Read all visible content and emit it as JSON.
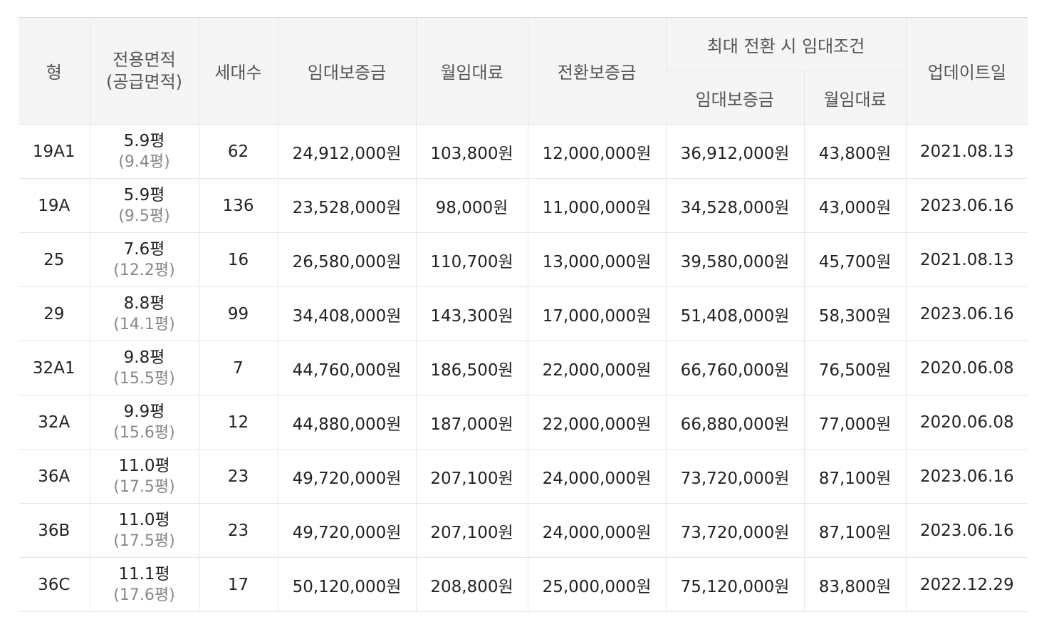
{
  "headers": {
    "type": "형",
    "area_line1": "전용면적",
    "area_line2": "(공급면적)",
    "households": "세대수",
    "deposit": "임대보증금",
    "monthly_rent": "월임대료",
    "conversion_deposit": "전환보증금",
    "max_conversion_group": "최대 전환 시 임대조건",
    "max_deposit": "임대보증금",
    "max_monthly_rent": "월임대료",
    "updated": "업데이트일"
  },
  "rows": [
    {
      "type": "19A1",
      "area": "5.9평",
      "supply_area": "(9.4평)",
      "households": "62",
      "deposit": "24,912,000원",
      "rent": "103,800원",
      "conversion": "12,000,000원",
      "max_deposit": "36,912,000원",
      "max_rent": "43,800원",
      "updated": "2021.08.13"
    },
    {
      "type": "19A",
      "area": "5.9평",
      "supply_area": "(9.5평)",
      "households": "136",
      "deposit": "23,528,000원",
      "rent": "98,000원",
      "conversion": "11,000,000원",
      "max_deposit": "34,528,000원",
      "max_rent": "43,000원",
      "updated": "2023.06.16"
    },
    {
      "type": "25",
      "area": "7.6평",
      "supply_area": "(12.2평)",
      "households": "16",
      "deposit": "26,580,000원",
      "rent": "110,700원",
      "conversion": "13,000,000원",
      "max_deposit": "39,580,000원",
      "max_rent": "45,700원",
      "updated": "2021.08.13"
    },
    {
      "type": "29",
      "area": "8.8평",
      "supply_area": "(14.1평)",
      "households": "99",
      "deposit": "34,408,000원",
      "rent": "143,300원",
      "conversion": "17,000,000원",
      "max_deposit": "51,408,000원",
      "max_rent": "58,300원",
      "updated": "2023.06.16"
    },
    {
      "type": "32A1",
      "area": "9.8평",
      "supply_area": "(15.5평)",
      "households": "7",
      "deposit": "44,760,000원",
      "rent": "186,500원",
      "conversion": "22,000,000원",
      "max_deposit": "66,760,000원",
      "max_rent": "76,500원",
      "updated": "2020.06.08"
    },
    {
      "type": "32A",
      "area": "9.9평",
      "supply_area": "(15.6평)",
      "households": "12",
      "deposit": "44,880,000원",
      "rent": "187,000원",
      "conversion": "22,000,000원",
      "max_deposit": "66,880,000원",
      "max_rent": "77,000원",
      "updated": "2020.06.08"
    },
    {
      "type": "36A",
      "area": "11.0평",
      "supply_area": "(17.5평)",
      "households": "23",
      "deposit": "49,720,000원",
      "rent": "207,100원",
      "conversion": "24,000,000원",
      "max_deposit": "73,720,000원",
      "max_rent": "87,100원",
      "updated": "2023.06.16"
    },
    {
      "type": "36B",
      "area": "11.0평",
      "supply_area": "(17.5평)",
      "households": "23",
      "deposit": "49,720,000원",
      "rent": "207,100원",
      "conversion": "24,000,000원",
      "max_deposit": "73,720,000원",
      "max_rent": "87,100원",
      "updated": "2023.06.16"
    },
    {
      "type": "36C",
      "area": "11.1평",
      "supply_area": "(17.6평)",
      "households": "17",
      "deposit": "50,120,000원",
      "rent": "208,800원",
      "conversion": "25,000,000원",
      "max_deposit": "75,120,000원",
      "max_rent": "83,800원",
      "updated": "2022.12.29"
    }
  ]
}
